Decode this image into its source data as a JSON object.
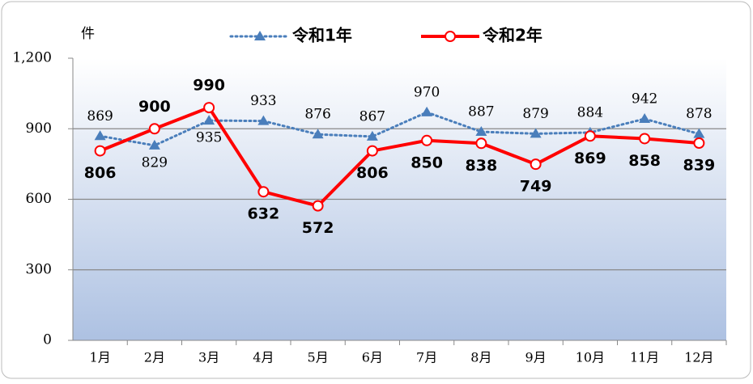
{
  "chart_data": {
    "type": "line",
    "y_axis_label": "件",
    "categories": [
      "1月",
      "2月",
      "3月",
      "4月",
      "5月",
      "6月",
      "7月",
      "8月",
      "9月",
      "10月",
      "11月",
      "12月"
    ],
    "series": [
      {
        "name": "令和1年",
        "color": "#4a7ebb",
        "values": [
          869,
          829,
          935,
          933,
          876,
          867,
          970,
          887,
          879,
          884,
          942,
          878
        ]
      },
      {
        "name": "令和2年",
        "color": "#ff0000",
        "values": [
          806,
          900,
          990,
          632,
          572,
          806,
          850,
          838,
          749,
          869,
          858,
          839
        ]
      }
    ],
    "ylim": [
      0,
      1200
    ],
    "yticks": [
      0,
      300,
      600,
      900,
      {
        "value": 1200,
        "label": "1,200"
      }
    ],
    "grid": true,
    "legend": "top"
  }
}
